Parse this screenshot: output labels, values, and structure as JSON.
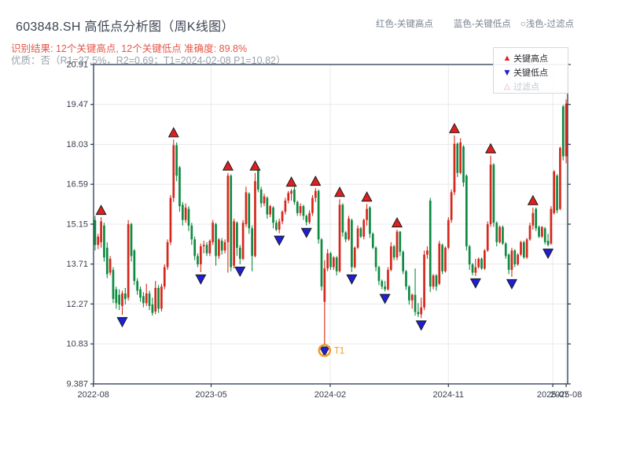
{
  "header": {
    "title": "603848.SH 高低点分析图（周K线图）",
    "legend_inline": {
      "high": "红色-关键高点",
      "low": "蓝色-关键低点",
      "filtered": "○浅色-过滤点"
    },
    "result_line": "识别结果: 12个关键高点, 12个关键低点  准确度: 89.8%",
    "quality_line": "优质：否（R1=37.5%，R2=0.69；T1=2024-02-08 P1=10.82）"
  },
  "legend_box": {
    "items": [
      {
        "label": "关键高点",
        "marker": "up-triangle-red"
      },
      {
        "label": "关键低点",
        "marker": "down-triangle-blue"
      },
      {
        "label": "过滤点",
        "marker": "hollow-triangle-light"
      }
    ]
  },
  "chart_data": {
    "type": "candlestick",
    "period": "weekly",
    "title": "603848.SH 高低点分析图（周K线图）",
    "grid": true,
    "y_range": [
      9.387,
      20.91
    ],
    "y_ticks": [
      "20.91",
      "19.47",
      "18.03",
      "16.59",
      "15.15",
      "13.71",
      "12.27",
      "10.83",
      "9.387"
    ],
    "x_ticks": [
      {
        "label": "2022-08",
        "i": -0.57
      },
      {
        "label": "2023-05",
        "i": 38.43
      },
      {
        "label": "2024-02",
        "i": 77.86
      },
      {
        "label": "2024-11",
        "i": 117.0
      },
      {
        "label": "2025-07",
        "i": 151.57
      },
      {
        "label": "2025-08",
        "i": 156.0
      }
    ],
    "colors": {
      "up": "#d5281c",
      "down": "#0f8a41",
      "key_high": "#e01f1f",
      "key_low": "#1f1fd5",
      "marker_edge": "#1a1a1a",
      "t1_orange": "#ef9b28",
      "grid": "#e9e9ec",
      "spine": "#2a3950",
      "tick_label": "#39404d"
    },
    "candles": [
      [
        15.3,
        15.45,
        14.2,
        14.4
      ],
      [
        14.4,
        14.8,
        14.25,
        14.7
      ],
      [
        14.5,
        15.4,
        14.3,
        15.25
      ],
      [
        15.1,
        15.2,
        13.8,
        13.95
      ],
      [
        14.3,
        14.5,
        13.2,
        13.35
      ],
      [
        13.4,
        14.0,
        13.3,
        13.9
      ],
      [
        13.5,
        13.6,
        12.3,
        12.45
      ],
      [
        12.8,
        12.9,
        12.1,
        12.3
      ],
      [
        12.6,
        12.8,
        12.05,
        12.25
      ],
      [
        12.2,
        12.75,
        11.88,
        12.65
      ],
      [
        12.65,
        12.85,
        12.25,
        12.45
      ],
      [
        12.5,
        15.3,
        12.4,
        15.15
      ],
      [
        15.15,
        15.2,
        13.8,
        14.0
      ],
      [
        14.2,
        14.25,
        12.95,
        13.1
      ],
      [
        13.1,
        13.2,
        12.6,
        12.75
      ],
      [
        12.8,
        12.9,
        12.35,
        12.5
      ],
      [
        12.55,
        12.7,
        12.15,
        12.3
      ],
      [
        12.3,
        13.0,
        12.2,
        12.65
      ],
      [
        12.65,
        12.75,
        12.05,
        12.2
      ],
      [
        12.25,
        12.5,
        11.85,
        11.95
      ],
      [
        12.0,
        13.1,
        11.9,
        12.85
      ],
      [
        12.85,
        12.95,
        11.95,
        12.1
      ],
      [
        12.1,
        13.0,
        12.0,
        12.9
      ],
      [
        12.9,
        13.7,
        12.8,
        13.6
      ],
      [
        13.6,
        14.6,
        13.5,
        14.5
      ],
      [
        14.5,
        16.2,
        14.4,
        16.1
      ],
      [
        16.1,
        18.2,
        15.95,
        18.0
      ],
      [
        18.0,
        18.1,
        16.7,
        16.9
      ],
      [
        17.2,
        17.25,
        15.6,
        15.8
      ],
      [
        15.85,
        15.95,
        15.1,
        15.3
      ],
      [
        15.3,
        15.9,
        15.2,
        15.75
      ],
      [
        15.7,
        15.8,
        14.9,
        15.1
      ],
      [
        15.1,
        15.2,
        14.4,
        14.6
      ],
      [
        14.6,
        14.7,
        13.85,
        14.0
      ],
      [
        14.0,
        14.1,
        13.6,
        13.7
      ],
      [
        13.7,
        14.45,
        13.42,
        14.35
      ],
      [
        14.35,
        14.55,
        14.1,
        14.4
      ],
      [
        14.4,
        14.5,
        14.0,
        14.1
      ],
      [
        14.1,
        14.6,
        14.0,
        14.55
      ],
      [
        14.5,
        15.3,
        14.4,
        15.2
      ],
      [
        15.15,
        15.2,
        13.65,
        14.0
      ],
      [
        14.0,
        14.65,
        13.9,
        14.6
      ],
      [
        14.55,
        14.65,
        14.05,
        14.2
      ],
      [
        14.2,
        14.6,
        14.1,
        14.5
      ],
      [
        14.5,
        17.0,
        13.4,
        16.9
      ],
      [
        16.9,
        16.95,
        13.45,
        13.6
      ],
      [
        13.65,
        15.35,
        13.55,
        15.25
      ],
      [
        15.2,
        15.25,
        14.0,
        14.3
      ],
      [
        14.3,
        14.4,
        13.7,
        13.9
      ],
      [
        13.9,
        15.3,
        13.85,
        15.2
      ],
      [
        15.15,
        16.5,
        15.05,
        16.3
      ],
      [
        16.25,
        16.3,
        14.8,
        15.0
      ],
      [
        15.0,
        15.1,
        13.45,
        14.0
      ],
      [
        14.0,
        17.0,
        13.95,
        16.7
      ],
      [
        17.15,
        17.25,
        16.3,
        16.4
      ],
      [
        16.4,
        16.5,
        15.75,
        15.9
      ],
      [
        15.9,
        16.25,
        15.8,
        16.15
      ],
      [
        16.1,
        16.15,
        15.35,
        15.5
      ],
      [
        15.5,
        15.85,
        15.4,
        15.8
      ],
      [
        15.75,
        15.8,
        15.0,
        15.2
      ],
      [
        15.2,
        15.3,
        14.9,
        14.95
      ],
      [
        14.95,
        15.35,
        14.82,
        15.25
      ],
      [
        15.25,
        15.65,
        15.15,
        15.6
      ],
      [
        15.6,
        16.1,
        15.5,
        16.0
      ],
      [
        16.0,
        16.35,
        15.9,
        16.28
      ],
      [
        16.25,
        16.42,
        16.0,
        16.35
      ],
      [
        16.4,
        16.5,
        15.85,
        15.95
      ],
      [
        15.95,
        16.0,
        15.45,
        15.55
      ],
      [
        15.55,
        15.9,
        15.45,
        15.8
      ],
      [
        15.8,
        15.85,
        15.3,
        15.45
      ],
      [
        15.45,
        15.5,
        15.1,
        15.22
      ],
      [
        15.22,
        15.65,
        15.15,
        15.55
      ],
      [
        15.55,
        16.2,
        15.45,
        16.1
      ],
      [
        16.1,
        16.45,
        15.95,
        16.35
      ],
      [
        16.35,
        16.4,
        14.45,
        14.6
      ],
      [
        14.6,
        14.65,
        12.75,
        12.9
      ],
      [
        12.35,
        13.85,
        10.82,
        13.55
      ],
      [
        13.55,
        14.25,
        13.45,
        14.1
      ],
      [
        14.1,
        14.15,
        13.5,
        13.6
      ],
      [
        13.6,
        14.0,
        13.5,
        13.95
      ],
      [
        13.95,
        14.0,
        13.3,
        13.45
      ],
      [
        13.45,
        16.05,
        13.4,
        15.85
      ],
      [
        15.85,
        15.9,
        14.7,
        14.85
      ],
      [
        14.85,
        14.9,
        14.5,
        14.6
      ],
      [
        14.6,
        15.45,
        14.55,
        15.35
      ],
      [
        15.3,
        15.35,
        13.42,
        13.6
      ],
      [
        13.6,
        14.35,
        13.55,
        14.3
      ],
      [
        14.3,
        15.1,
        14.25,
        15.0
      ],
      [
        15.0,
        15.05,
        14.65,
        14.7
      ],
      [
        14.7,
        15.35,
        14.6,
        15.3
      ],
      [
        15.3,
        15.88,
        15.1,
        15.7
      ],
      [
        15.75,
        15.8,
        14.65,
        14.8
      ],
      [
        14.8,
        14.85,
        14.25,
        14.3
      ],
      [
        14.3,
        14.35,
        13.45,
        13.6
      ],
      [
        13.6,
        13.65,
        12.95,
        13.1
      ],
      [
        13.1,
        13.15,
        12.8,
        12.9
      ],
      [
        12.9,
        13.1,
        12.72,
        12.8
      ],
      [
        12.8,
        13.6,
        12.75,
        13.5
      ],
      [
        13.5,
        14.5,
        13.45,
        14.35
      ],
      [
        14.35,
        14.4,
        13.85,
        13.95
      ],
      [
        13.95,
        14.95,
        13.85,
        14.88
      ],
      [
        14.88,
        14.9,
        14.0,
        14.15
      ],
      [
        14.15,
        14.2,
        13.35,
        13.45
      ],
      [
        13.45,
        13.5,
        12.78,
        12.9
      ],
      [
        12.9,
        12.95,
        12.25,
        12.4
      ],
      [
        12.4,
        12.65,
        12.1,
        12.6
      ],
      [
        12.6,
        13.55,
        11.85,
        11.98
      ],
      [
        11.98,
        12.3,
        11.8,
        11.9
      ],
      [
        11.9,
        12.5,
        11.76,
        12.15
      ],
      [
        12.15,
        14.2,
        12.05,
        14.05
      ],
      [
        14.05,
        14.35,
        13.9,
        14.2
      ],
      [
        16.0,
        16.1,
        12.7,
        12.9
      ],
      [
        12.9,
        13.35,
        12.8,
        13.3
      ],
      [
        13.3,
        13.35,
        12.75,
        12.9
      ],
      [
        13.0,
        14.55,
        12.95,
        14.45
      ],
      [
        14.4,
        14.45,
        13.35,
        13.45
      ],
      [
        13.45,
        14.35,
        13.4,
        14.3
      ],
      [
        14.3,
        15.4,
        14.25,
        15.3
      ],
      [
        15.3,
        16.4,
        15.2,
        16.3
      ],
      [
        16.3,
        18.35,
        16.2,
        18.05
      ],
      [
        18.05,
        18.1,
        16.85,
        17.0
      ],
      [
        17.0,
        18.25,
        16.95,
        18.1
      ],
      [
        17.95,
        18.0,
        16.5,
        16.65
      ],
      [
        16.9,
        16.95,
        14.2,
        14.35
      ],
      [
        14.35,
        14.4,
        13.5,
        13.7
      ],
      [
        13.7,
        13.75,
        13.3,
        13.4
      ],
      [
        13.4,
        13.9,
        13.28,
        13.6
      ],
      [
        13.6,
        13.95,
        13.55,
        13.9
      ],
      [
        13.9,
        13.95,
        13.5,
        13.55
      ],
      [
        13.55,
        14.25,
        13.5,
        14.2
      ],
      [
        14.2,
        15.25,
        14.15,
        15.15
      ],
      [
        15.15,
        17.62,
        15.05,
        17.3
      ],
      [
        17.3,
        17.35,
        15.05,
        15.2
      ],
      [
        15.2,
        15.25,
        14.35,
        14.5
      ],
      [
        14.5,
        15.1,
        14.45,
        15.05
      ],
      [
        15.05,
        15.1,
        14.4,
        14.45
      ],
      [
        14.45,
        14.5,
        13.9,
        14.0
      ],
      [
        14.05,
        14.1,
        13.35,
        13.5
      ],
      [
        13.5,
        14.3,
        13.25,
        14.2
      ],
      [
        14.2,
        14.25,
        13.6,
        13.7
      ],
      [
        13.7,
        14.1,
        13.65,
        14.05
      ],
      [
        14.05,
        14.55,
        14.0,
        14.5
      ],
      [
        14.5,
        14.55,
        13.9,
        13.95
      ],
      [
        13.95,
        14.65,
        13.9,
        14.6
      ],
      [
        14.6,
        15.2,
        14.55,
        15.1
      ],
      [
        15.1,
        15.75,
        14.95,
        15.55
      ],
      [
        15.7,
        15.75,
        14.9,
        15.0
      ],
      [
        15.05,
        15.1,
        14.65,
        14.7
      ],
      [
        14.7,
        15.08,
        14.65,
        15.05
      ],
      [
        15.0,
        15.05,
        14.42,
        14.5
      ],
      [
        14.55,
        14.8,
        14.35,
        14.4
      ],
      [
        14.45,
        15.8,
        14.4,
        15.7
      ],
      [
        15.55,
        17.1,
        15.5,
        17.05
      ],
      [
        16.9,
        16.95,
        15.55,
        15.65
      ],
      [
        15.7,
        17.95,
        15.65,
        17.9
      ],
      [
        19.4,
        19.45,
        17.45,
        17.6
      ],
      [
        17.6,
        19.65,
        17.35,
        19.5
      ]
    ],
    "key_highs": [
      {
        "i": 2,
        "price": 15.4
      },
      {
        "i": 26,
        "price": 18.2
      },
      {
        "i": 44,
        "price": 17.0
      },
      {
        "i": 53,
        "price": 17.0
      },
      {
        "i": 65,
        "price": 16.42
      },
      {
        "i": 73,
        "price": 16.45
      },
      {
        "i": 81,
        "price": 16.05
      },
      {
        "i": 90,
        "price": 15.88
      },
      {
        "i": 100,
        "price": 14.95
      },
      {
        "i": 119,
        "price": 18.35
      },
      {
        "i": 131,
        "price": 17.62
      },
      {
        "i": 145,
        "price": 15.75
      }
    ],
    "key_lows": [
      {
        "i": 9,
        "price": 11.88
      },
      {
        "i": 35,
        "price": 13.42
      },
      {
        "i": 48,
        "price": 13.7
      },
      {
        "i": 61,
        "price": 14.82
      },
      {
        "i": 70,
        "price": 15.1
      },
      {
        "i": 76,
        "price": 10.82
      },
      {
        "i": 85,
        "price": 13.42
      },
      {
        "i": 96,
        "price": 12.72
      },
      {
        "i": 108,
        "price": 11.76
      },
      {
        "i": 126,
        "price": 13.28
      },
      {
        "i": 138,
        "price": 13.25
      },
      {
        "i": 150,
        "price": 14.35
      }
    ],
    "t1": {
      "i": 76,
      "price": 10.82,
      "label": "T1",
      "date": "2024-02-08"
    }
  }
}
